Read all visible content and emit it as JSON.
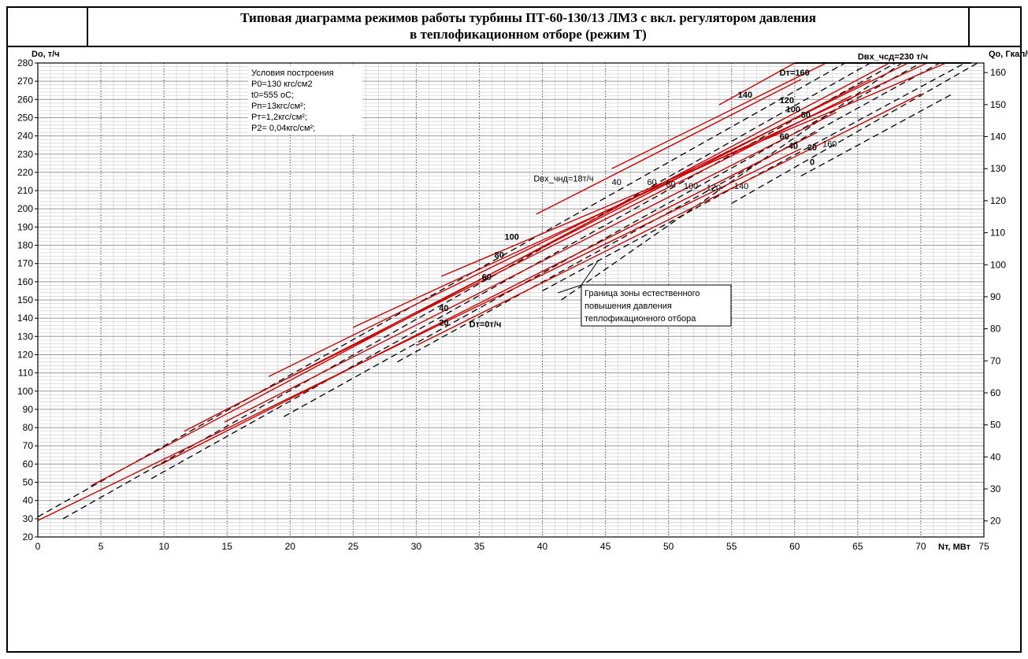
{
  "title": {
    "line1": "Типовая диаграмма режимов работы турбины ПТ-60-130/13 ЛМЗ с вкл. регулятором давления",
    "line2": "в теплофикационном  отборе (режим Т)"
  },
  "conditions": {
    "heading": "Условия построения",
    "lines": [
      "P0=130 кгс/см2",
      "t0=555 оС;",
      "Pп=13кгс/см²;",
      "Pт=1,2кгс/см²;",
      "P2= 0,04кгс/см²;"
    ]
  },
  "callout": {
    "lines": [
      "Граница зоны естественного",
      "повышения давления",
      "теплофикационного отбора"
    ]
  },
  "colors": {
    "red_lines": "#cc0000",
    "dashed_lines": "#000000",
    "grid_major": "#9a9a9a",
    "grid_minor": "#d0d0d0"
  },
  "chart_data": {
    "type": "line",
    "title": "Типовая диаграмма режимов работы турбины ПТ-60-130/13 ЛМЗ с вкл. регулятором давления в теплофикационном  отборе (режим Т)",
    "xlabel": "Nт, МВт",
    "ylabel": "Do, т/ч",
    "y2label": "Qo, Гкал/ч",
    "xlim": [
      0,
      75
    ],
    "ylim": [
      20,
      280
    ],
    "y2lim": [
      15,
      163
    ],
    "x_ticks": [
      0,
      5,
      10,
      15,
      20,
      25,
      30,
      35,
      40,
      45,
      50,
      55,
      60,
      65,
      70,
      75
    ],
    "y_ticks": [
      20,
      30,
      40,
      50,
      60,
      70,
      80,
      90,
      100,
      110,
      120,
      130,
      140,
      150,
      160,
      170,
      180,
      190,
      200,
      210,
      220,
      230,
      240,
      250,
      260,
      270,
      280
    ],
    "y2_ticks": [
      20,
      30,
      40,
      50,
      60,
      70,
      80,
      90,
      100,
      110,
      120,
      130,
      140,
      150,
      160
    ],
    "grid": true,
    "series_solid": [
      {
        "name": "0",
        "x": [
          0,
          60.5
        ],
        "y": [
          29,
          233
        ]
      },
      {
        "name": "20",
        "x": [
          9.5,
          61.8
        ],
        "y": [
          59,
          242
        ]
      },
      {
        "name": "40",
        "x": [
          14.8,
          63.3
        ],
        "y": [
          83,
          253
        ]
      },
      {
        "name": "60",
        "x": [
          19.8,
          64.5
        ],
        "y": [
          107,
          262
        ]
      },
      {
        "name": "80",
        "x": [
          11.6,
          66.0
        ],
        "y": [
          78,
          271
        ]
      },
      {
        "name": "100",
        "x": [
          4.2,
          67.5
        ],
        "y": [
          48,
          280
        ]
      },
      {
        "name": "120",
        "x": [
          18.3,
          69.0
        ],
        "y": [
          108,
          280
        ]
      },
      {
        "name": "140",
        "x": [
          25.0,
          70.5
        ],
        "y": [
          135,
          280
        ]
      },
      {
        "name": "160",
        "x": [
          32.0,
          72.0
        ],
        "y": [
          163,
          280
        ]
      },
      {
        "name": "Dт=0т/ч",
        "x": [
          30,
          70
        ],
        "y": [
          125,
          263
        ]
      },
      {
        "name": "40",
        "x": [
          39.5,
          60.5
        ],
        "y": [
          197,
          271
        ]
      },
      {
        "name": "80",
        "x": [
          45.5,
          62.5
        ],
        "y": [
          222,
          280
        ]
      },
      {
        "name": "140",
        "x": [
          54.0,
          60.0
        ],
        "y": [
          257,
          280
        ]
      },
      {
        "name": "Dвх_чсд=230 т/ч",
        "x": [
          60.0,
          74.0
        ],
        "y": [
          280,
          280
        ]
      }
    ],
    "series_dashed": [
      {
        "name": "Dвх_чнд=18т/ч",
        "x": [
          0,
          64.0
        ],
        "y": [
          31,
          280
        ]
      },
      {
        "name": "d1",
        "x": [
          2.0,
          66.0
        ],
        "y": [
          30,
          280
        ]
      },
      {
        "name": "d2",
        "x": [
          9.0,
          68.0
        ],
        "y": [
          52,
          280
        ]
      },
      {
        "name": "d3",
        "x": [
          19.5,
          70.0
        ],
        "y": [
          86,
          280
        ]
      },
      {
        "name": "d4",
        "x": [
          28.5,
          71.5
        ],
        "y": [
          116,
          280
        ]
      },
      {
        "name": "d5",
        "x": [
          40.0,
          73.5
        ],
        "y": [
          155,
          280
        ]
      },
      {
        "name": "d6",
        "x": [
          55.0,
          74.5
        ],
        "y": [
          203,
          280
        ]
      },
      {
        "name": "d7",
        "x": [
          60.5,
          72.5
        ],
        "y": [
          218,
          263
        ]
      },
      {
        "name": "boundary",
        "x": [
          41.5,
          68.5
        ],
        "y": [
          150,
          280
        ]
      }
    ],
    "labels": [
      {
        "text": "Dт=160",
        "x": 58.8,
        "y": 273,
        "bold": true
      },
      {
        "text": "140",
        "x": 55.5,
        "y": 261,
        "bold": true
      },
      {
        "text": "120",
        "x": 58.8,
        "y": 258,
        "bold": true
      },
      {
        "text": "100",
        "x": 59.3,
        "y": 253,
        "bold": true
      },
      {
        "text": "80",
        "x": 60.5,
        "y": 250,
        "bold": true
      },
      {
        "text": "60",
        "x": 58.8,
        "y": 238,
        "bold": true
      },
      {
        "text": "40",
        "x": 59.5,
        "y": 233,
        "bold": true
      },
      {
        "text": "20",
        "x": 61.0,
        "y": 232,
        "bold": true
      },
      {
        "text": "0",
        "x": 61.2,
        "y": 224,
        "bold": true
      },
      {
        "text": "160",
        "x": 62.2,
        "y": 234,
        "bold": false
      },
      {
        "text": "40",
        "x": 45.5,
        "y": 213,
        "bold": false
      },
      {
        "text": "60",
        "x": 48.3,
        "y": 213,
        "bold": false
      },
      {
        "text": "80",
        "x": 49.8,
        "y": 212,
        "bold": false
      },
      {
        "text": "100",
        "x": 51.2,
        "y": 211,
        "bold": false
      },
      {
        "text": "120",
        "x": 53.0,
        "y": 210,
        "bold": false
      },
      {
        "text": "140",
        "x": 55.2,
        "y": 211,
        "bold": false
      },
      {
        "text": "100",
        "x": 37.0,
        "y": 183,
        "bold": true
      },
      {
        "text": "80",
        "x": 36.2,
        "y": 173,
        "bold": true
      },
      {
        "text": "60",
        "x": 35.2,
        "y": 161,
        "bold": true
      },
      {
        "text": "40",
        "x": 31.8,
        "y": 144,
        "bold": true
      },
      {
        "text": "20",
        "x": 31.8,
        "y": 136,
        "bold": true
      },
      {
        "text": "Dт=0т/ч",
        "x": 34.2,
        "y": 135,
        "bold": true
      },
      {
        "text": "Dвх_чнд=18т/ч",
        "x": 39.3,
        "y": 215,
        "bold": false
      },
      {
        "text": "Dвх_чсд=230 т/ч",
        "x": 65.0,
        "y": 282,
        "bold": true
      }
    ]
  }
}
